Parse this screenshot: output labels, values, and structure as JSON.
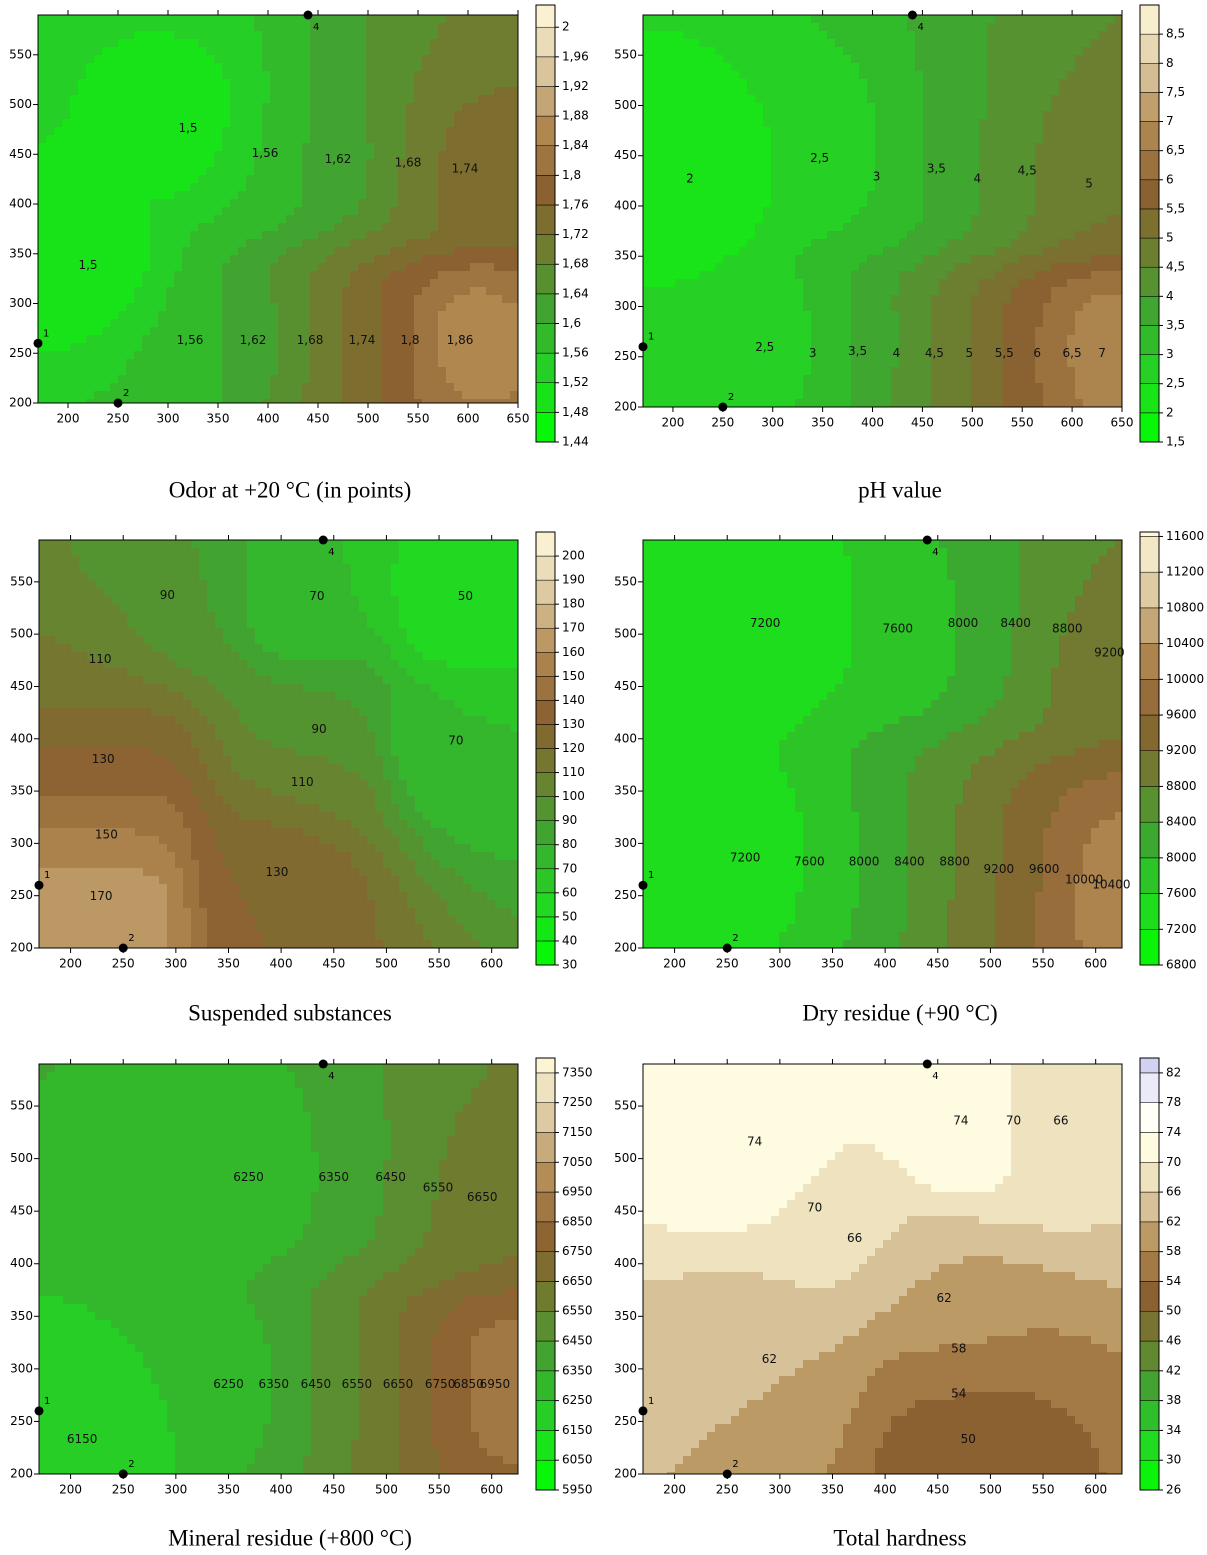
{
  "chart_data": [
    {
      "type": "contour",
      "title": "Odor at +20 °C (in points)",
      "xlim": [
        170,
        650
      ],
      "ylim": [
        200,
        590
      ],
      "xticks": [
        200,
        250,
        300,
        350,
        400,
        450,
        500,
        550,
        600,
        650
      ],
      "yticks": [
        200,
        250,
        300,
        350,
        400,
        450,
        500,
        550
      ],
      "clim": [
        1.44,
        2.03
      ],
      "cticks": [
        {
          "value": 1.44,
          "label": "1,44"
        },
        {
          "value": 1.48,
          "label": "1,48"
        },
        {
          "value": 1.52,
          "label": "1,52"
        },
        {
          "value": 1.56,
          "label": "1,56"
        },
        {
          "value": 1.6,
          "label": "1,6"
        },
        {
          "value": 1.64,
          "label": "1,64"
        },
        {
          "value": 1.68,
          "label": "1,68"
        },
        {
          "value": 1.72,
          "label": "1,72"
        },
        {
          "value": 1.76,
          "label": "1,76"
        },
        {
          "value": 1.8,
          "label": "1,8"
        },
        {
          "value": 1.84,
          "label": "1,84"
        },
        {
          "value": 1.88,
          "label": "1,88"
        },
        {
          "value": 1.92,
          "label": "1,92"
        },
        {
          "value": 1.96,
          "label": "1,96"
        },
        2
      ],
      "colormap": [
        "#00ff00",
        "#22d822",
        "#3aaa30",
        "#6b8030",
        "#8b6030",
        "#b08850",
        "#dcc8a0",
        "#fffadc"
      ],
      "contour_labels": [
        {
          "value": 1.5,
          "label": "1,5",
          "x": 320,
          "y": 476
        },
        {
          "value": 1.5,
          "label": "1,5",
          "x": 220,
          "y": 338
        },
        {
          "value": 1.56,
          "label": "1,56",
          "x": 397,
          "y": 451
        },
        {
          "value": 1.56,
          "label": "1,56",
          "x": 322,
          "y": 263
        },
        {
          "value": 1.62,
          "label": "1,62",
          "x": 470,
          "y": 445
        },
        {
          "value": 1.62,
          "label": "1,62",
          "x": 385,
          "y": 263
        },
        {
          "value": 1.68,
          "label": "1,68",
          "x": 540,
          "y": 441
        },
        {
          "value": 1.68,
          "label": "1,68",
          "x": 442,
          "y": 263
        },
        {
          "value": 1.74,
          "label": "1,74",
          "x": 597,
          "y": 435
        },
        {
          "value": 1.74,
          "label": "1,74",
          "x": 494,
          "y": 263
        },
        {
          "value": 1.8,
          "label": "1,8",
          "x": 542,
          "y": 263
        },
        {
          "value": 1.86,
          "label": "1,86",
          "x": 592,
          "y": 263
        }
      ],
      "points": [
        {
          "label": "1",
          "x": 170,
          "y": 260
        },
        {
          "label": "2",
          "x": 250,
          "y": 200
        },
        {
          "label": "4",
          "x": 440,
          "y": 590
        }
      ]
    },
    {
      "type": "contour",
      "title": "pH value",
      "xlim": [
        170,
        650
      ],
      "ylim": [
        200,
        590
      ],
      "xticks": [
        200,
        250,
        300,
        350,
        400,
        450,
        500,
        550,
        600,
        650
      ],
      "yticks": [
        200,
        250,
        300,
        350,
        400,
        450,
        500,
        550
      ],
      "clim": [
        1.5,
        9
      ],
      "cticks": [
        {
          "value": 1.5,
          "label": "1,5"
        },
        2,
        {
          "value": 2.5,
          "label": "2,5"
        },
        3,
        {
          "value": 3.5,
          "label": "3,5"
        },
        4,
        {
          "value": 4.5,
          "label": "4,5"
        },
        5,
        {
          "value": 5.5,
          "label": "5,5"
        },
        6,
        {
          "value": 6.5,
          "label": "6,5"
        },
        7,
        {
          "value": 7.5,
          "label": "7,5"
        },
        8,
        {
          "value": 8.5,
          "label": "8,5"
        }
      ],
      "colormap": [
        "#00ff00",
        "#22d822",
        "#3aaa30",
        "#6b8030",
        "#8b6030",
        "#b08850",
        "#dcc8a0",
        "#fffadc"
      ],
      "contour_labels": [
        {
          "value": 2,
          "x": 217,
          "y": 427
        },
        {
          "value": 2.5,
          "label": "2,5",
          "x": 347,
          "y": 447
        },
        {
          "value": 3,
          "x": 404,
          "y": 429
        },
        {
          "value": 3.5,
          "label": "3,5",
          "x": 464,
          "y": 437
        },
        {
          "value": 4,
          "x": 505,
          "y": 427
        },
        {
          "value": 4.5,
          "label": "4,5",
          "x": 555,
          "y": 435
        },
        {
          "value": 5,
          "x": 617,
          "y": 422
        },
        {
          "value": 2.5,
          "label": "2,5",
          "x": 292,
          "y": 259
        },
        {
          "value": 3,
          "x": 340,
          "y": 253
        },
        {
          "value": 3.5,
          "label": "3,5",
          "x": 385,
          "y": 255
        },
        {
          "value": 4,
          "x": 424,
          "y": 253
        },
        {
          "value": 4.5,
          "label": "4,5",
          "x": 462,
          "y": 253
        },
        {
          "value": 5,
          "x": 497,
          "y": 253
        },
        {
          "value": 5.5,
          "label": "5,5",
          "x": 532,
          "y": 253
        },
        {
          "value": 6,
          "x": 565,
          "y": 253
        },
        {
          "value": 6.5,
          "label": "6,5",
          "x": 600,
          "y": 253
        },
        {
          "value": 7,
          "x": 630,
          "y": 253
        }
      ],
      "points": [
        {
          "label": "1",
          "x": 170,
          "y": 260
        },
        {
          "label": "2",
          "x": 250,
          "y": 200
        },
        {
          "label": "4",
          "x": 440,
          "y": 590
        }
      ]
    },
    {
      "type": "contour",
      "title": "Suspended substances",
      "xlim": [
        170,
        625
      ],
      "ylim": [
        200,
        590
      ],
      "xticks": [
        200,
        250,
        300,
        350,
        400,
        450,
        500,
        550,
        600
      ],
      "yticks": [
        200,
        250,
        300,
        350,
        400,
        450,
        500,
        550
      ],
      "clim": [
        30,
        210
      ],
      "cticks": [
        30,
        40,
        50,
        60,
        70,
        80,
        90,
        100,
        110,
        120,
        130,
        140,
        150,
        160,
        170,
        180,
        190,
        200
      ],
      "colormap": [
        "#00ff00",
        "#22d822",
        "#3aaa30",
        "#6b8030",
        "#8b6030",
        "#b08850",
        "#dcc8a0",
        "#fffadc"
      ],
      "contour_labels": [
        {
          "value": 90,
          "x": 292,
          "y": 537
        },
        {
          "value": 70,
          "x": 434,
          "y": 536
        },
        {
          "value": 50,
          "x": 575,
          "y": 536
        },
        {
          "value": 110,
          "x": 228,
          "y": 476
        },
        {
          "value": 90,
          "x": 436,
          "y": 409
        },
        {
          "value": 70,
          "x": 566,
          "y": 398
        },
        {
          "value": 130,
          "x": 231,
          "y": 380
        },
        {
          "value": 110,
          "x": 420,
          "y": 358
        },
        {
          "value": 150,
          "x": 234,
          "y": 308
        },
        {
          "value": 130,
          "x": 396,
          "y": 272
        },
        {
          "value": 170,
          "x": 229,
          "y": 249
        }
      ],
      "points": [
        {
          "label": "1",
          "x": 170,
          "y": 260
        },
        {
          "label": "2",
          "x": 250,
          "y": 200
        },
        {
          "label": "4",
          "x": 440,
          "y": 590
        }
      ]
    },
    {
      "type": "contour",
      "title": "Dry residue (+90 °C)",
      "xlim": [
        170,
        625
      ],
      "ylim": [
        200,
        590
      ],
      "xticks": [
        200,
        250,
        300,
        350,
        400,
        450,
        500,
        550,
        600
      ],
      "yticks": [
        200,
        250,
        300,
        350,
        400,
        450,
        500,
        550
      ],
      "clim": [
        6800,
        11650
      ],
      "cticks": [
        6800,
        7200,
        7600,
        8000,
        8400,
        8800,
        9200,
        9600,
        10000,
        10400,
        10800,
        11200,
        11600
      ],
      "colormap": [
        "#00ff00",
        "#22d822",
        "#3aaa30",
        "#6b8030",
        "#8b6030",
        "#b08850",
        "#dcc8a0",
        "#fffadc"
      ],
      "contour_labels": [
        {
          "value": 7200,
          "x": 286,
          "y": 510
        },
        {
          "value": 7600,
          "x": 412,
          "y": 505
        },
        {
          "value": 8000,
          "x": 474,
          "y": 510
        },
        {
          "value": 8400,
          "x": 524,
          "y": 510
        },
        {
          "value": 8800,
          "x": 573,
          "y": 505
        },
        {
          "value": 9200,
          "x": 613,
          "y": 482
        },
        {
          "value": 7200,
          "x": 267,
          "y": 286
        },
        {
          "value": 7600,
          "x": 328,
          "y": 282
        },
        {
          "value": 8000,
          "x": 380,
          "y": 282
        },
        {
          "value": 8400,
          "x": 423,
          "y": 282
        },
        {
          "value": 8800,
          "x": 466,
          "y": 282
        },
        {
          "value": 9200,
          "x": 508,
          "y": 275
        },
        {
          "value": 9600,
          "x": 551,
          "y": 275
        },
        {
          "value": 10000,
          "x": 589,
          "y": 265
        },
        {
          "value": 10400,
          "x": 615,
          "y": 260
        }
      ],
      "points": [
        {
          "label": "1",
          "x": 170,
          "y": 260
        },
        {
          "label": "2",
          "x": 250,
          "y": 200
        },
        {
          "label": "4",
          "x": 440,
          "y": 590
        }
      ]
    },
    {
      "type": "contour",
      "title": "Mineral residue (+800 °C)",
      "xlim": [
        170,
        625
      ],
      "ylim": [
        200,
        590
      ],
      "xticks": [
        200,
        250,
        300,
        350,
        400,
        450,
        500,
        550,
        600
      ],
      "yticks": [
        200,
        250,
        300,
        350,
        400,
        450,
        500,
        550
      ],
      "clim": [
        5950,
        7400
      ],
      "cticks": [
        5950,
        6050,
        6150,
        6250,
        6350,
        6450,
        6550,
        6650,
        6750,
        6850,
        6950,
        7050,
        7150,
        7250,
        7350
      ],
      "colormap": [
        "#00ff00",
        "#22d822",
        "#3aaa30",
        "#6b8030",
        "#8b6030",
        "#b08850",
        "#dcc8a0",
        "#fffadc"
      ],
      "contour_labels": [
        {
          "value": 6250,
          "x": 369,
          "y": 482
        },
        {
          "value": 6350,
          "x": 450,
          "y": 482
        },
        {
          "value": 6450,
          "x": 504,
          "y": 482
        },
        {
          "value": 6550,
          "x": 549,
          "y": 472
        },
        {
          "value": 6650,
          "x": 591,
          "y": 463
        },
        {
          "value": 6150,
          "x": 211,
          "y": 233
        },
        {
          "value": 6250,
          "x": 350,
          "y": 285
        },
        {
          "value": 6350,
          "x": 393,
          "y": 285
        },
        {
          "value": 6450,
          "x": 433,
          "y": 285
        },
        {
          "value": 6550,
          "x": 472,
          "y": 285
        },
        {
          "value": 6650,
          "x": 511,
          "y": 285
        },
        {
          "value": 6750,
          "x": 551,
          "y": 285
        },
        {
          "value": 6850,
          "x": 578,
          "y": 285
        },
        {
          "value": 6950,
          "x": 603,
          "y": 285
        }
      ],
      "points": [
        {
          "label": "1",
          "x": 170,
          "y": 260
        },
        {
          "label": "2",
          "x": 250,
          "y": 200
        },
        {
          "label": "4",
          "x": 440,
          "y": 590
        }
      ]
    },
    {
      "type": "contour",
      "title": "Total hardness",
      "xlim": [
        170,
        625
      ],
      "ylim": [
        200,
        590
      ],
      "xticks": [
        200,
        250,
        300,
        350,
        400,
        450,
        500,
        550,
        600
      ],
      "yticks": [
        200,
        250,
        300,
        350,
        400,
        450,
        500,
        550
      ],
      "clim": [
        26,
        84
      ],
      "cticks": [
        26,
        30,
        34,
        38,
        42,
        46,
        50,
        54,
        58,
        62,
        66,
        70,
        74,
        78,
        82
      ],
      "colormap": [
        "#00ff00",
        "#22d822",
        "#3aaa30",
        "#6b8030",
        "#8b6030",
        "#b08850",
        "#dcc8a0",
        "#fffadc",
        "#ffffff",
        "#c8c8f0"
      ],
      "contour_labels": [
        {
          "value": 74,
          "x": 276,
          "y": 516
        },
        {
          "value": 74,
          "x": 472,
          "y": 536
        },
        {
          "value": 70,
          "x": 522,
          "y": 536
        },
        {
          "value": 66,
          "x": 567,
          "y": 536
        },
        {
          "value": 70,
          "x": 333,
          "y": 453
        },
        {
          "value": 66,
          "x": 371,
          "y": 424
        },
        {
          "value": 62,
          "x": 456,
          "y": 367
        },
        {
          "value": 58,
          "x": 470,
          "y": 319
        },
        {
          "value": 62,
          "x": 290,
          "y": 309
        },
        {
          "value": 54,
          "x": 470,
          "y": 276
        },
        {
          "value": 50,
          "x": 479,
          "y": 233
        }
      ],
      "points": [
        {
          "label": "1",
          "x": 170,
          "y": 260
        },
        {
          "label": "2",
          "x": 250,
          "y": 200
        },
        {
          "label": "4",
          "x": 440,
          "y": 590
        }
      ]
    }
  ]
}
